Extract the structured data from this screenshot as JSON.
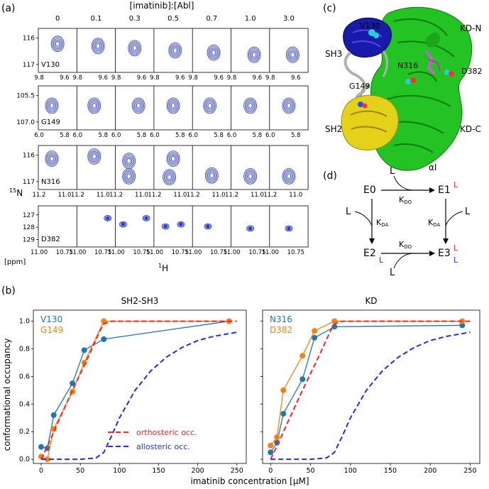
{
  "panel_labels": {
    "a": "(a)",
    "b": "(b)",
    "c": "(c)",
    "d": "(d)"
  },
  "panel_a": {
    "header": "[imatinib]:[Abl]",
    "ratios": [
      "0",
      "0.1",
      "0.3",
      "0.5",
      "0.7",
      "1.0",
      "3.0"
    ],
    "ylabel_sup": "15",
    "ylabel": "N",
    "xlabel_sup": "1",
    "xlabel": "H",
    "ppm_label": "[ppm]",
    "rows": [
      {
        "residue": "V130",
        "yticks": [
          "116",
          "117"
        ],
        "xticks": [
          "9.8",
          "9.6"
        ]
      },
      {
        "residue": "G149",
        "yticks": [
          "105.5",
          "107.0"
        ],
        "xticks": [
          "6.0",
          "5.8"
        ]
      },
      {
        "residue": "N316",
        "yticks": [
          "116",
          "117"
        ],
        "xticks": [
          "11.2",
          "11.0"
        ]
      },
      {
        "residue": "D382",
        "yticks": [
          "127",
          "128",
          "129"
        ],
        "xticks": [
          "11.00",
          "10.75"
        ]
      }
    ]
  },
  "panel_c": {
    "labels": {
      "v130": "V130",
      "sh3": "SH3",
      "g149": "G149",
      "sh2": "SH2",
      "n316": "N316",
      "d382": "D382",
      "kdn": "KD-N",
      "kdc": "KD-C",
      "alpha": "αI"
    }
  },
  "panel_d": {
    "states": {
      "e0": "E0",
      "e1": "E1",
      "e2": "E2",
      "e3": "E3"
    },
    "ligand": "L",
    "kdo": {
      "main": "K",
      "sub": "DO"
    },
    "kda": {
      "main": "K",
      "sub": "DA"
    },
    "marks": {
      "red": "L",
      "blue": "L"
    }
  },
  "colors": {
    "blue_contour": "#2233cc",
    "series_blue": "#1f77b4",
    "series_orange": "#ff7f0e",
    "ortho": "#ff2020",
    "allo": "#1f2fe0",
    "green": "#22c322",
    "yellow": "#e4d21a",
    "navy": "#1a1aa8"
  },
  "panel_b": {
    "ylabel": "conformational occupancy",
    "xlabel": "imatinib concentration [μM]",
    "legend": {
      "ortho": "orthosteric occ.",
      "allo": "allosteric occ."
    },
    "left_series_labels": [
      "V130",
      "G149"
    ],
    "right_series_labels": [
      "N316",
      "D382"
    ]
  },
  "chart_data": [
    {
      "type": "line",
      "title": "SH2-SH3",
      "xlabel": "imatinib concentration [μM]",
      "ylabel": "conformational occupancy",
      "xlim": [
        -10,
        262
      ],
      "ylim": [
        -0.03,
        1.08
      ],
      "xticks": [
        "0",
        "50",
        "100",
        "150",
        "200",
        "250"
      ],
      "yticks": [
        "0.0",
        "0.2",
        "0.4",
        "0.6",
        "0.8",
        "1.0"
      ],
      "series": [
        {
          "name": "V130",
          "x": [
            0,
            8,
            16,
            40,
            55,
            80,
            240
          ],
          "y": [
            0.09,
            0.08,
            0.32,
            0.55,
            0.79,
            0.87,
            1.0
          ]
        },
        {
          "name": "G149",
          "x": [
            0,
            8,
            16,
            40,
            55,
            80,
            240
          ],
          "y": [
            0.02,
            0.0,
            0.22,
            0.49,
            0.7,
            1.0,
            1.0
          ]
        },
        {
          "name": "orthosteric occ.",
          "x": [
            0,
            10,
            20,
            40,
            60,
            75,
            80,
            90,
            120,
            250
          ],
          "y": [
            0.0,
            0.12,
            0.25,
            0.5,
            0.74,
            0.93,
            0.98,
            1.0,
            1.0,
            1.0
          ]
        },
        {
          "name": "allosteric occ.",
          "x": [
            0,
            50,
            70,
            80,
            90,
            100,
            120,
            140,
            160,
            180,
            200,
            220,
            250
          ],
          "y": [
            0.0,
            0.0,
            0.01,
            0.05,
            0.17,
            0.3,
            0.5,
            0.64,
            0.74,
            0.81,
            0.86,
            0.89,
            0.92
          ]
        }
      ]
    },
    {
      "type": "line",
      "title": "KD",
      "xlabel": "imatinib concentration [μM]",
      "xlim": [
        -10,
        262
      ],
      "ylim": [
        -0.03,
        1.08
      ],
      "xticks": [
        "0",
        "50",
        "100",
        "150",
        "200",
        "250"
      ],
      "yticks": [
        "0.0",
        "0.2",
        "0.4",
        "0.6",
        "0.8",
        "1.0"
      ],
      "series": [
        {
          "name": "N316",
          "x": [
            0,
            8,
            16,
            40,
            55,
            80,
            240
          ],
          "y": [
            0.05,
            0.12,
            0.33,
            0.58,
            0.88,
            0.96,
            0.97
          ]
        },
        {
          "name": "D382",
          "x": [
            0,
            8,
            16,
            40,
            55,
            80,
            240
          ],
          "y": [
            0.1,
            0.16,
            0.5,
            0.75,
            0.93,
            1.0,
            1.0
          ]
        },
        {
          "name": "orthosteric occ.",
          "x": [
            0,
            10,
            20,
            40,
            60,
            75,
            80,
            90,
            120,
            250
          ],
          "y": [
            0.0,
            0.12,
            0.25,
            0.5,
            0.74,
            0.93,
            0.98,
            1.0,
            1.0,
            1.0
          ]
        },
        {
          "name": "allosteric occ.",
          "x": [
            0,
            50,
            70,
            80,
            90,
            100,
            120,
            140,
            160,
            180,
            200,
            220,
            250
          ],
          "y": [
            0.0,
            0.0,
            0.01,
            0.05,
            0.17,
            0.3,
            0.5,
            0.64,
            0.74,
            0.81,
            0.86,
            0.89,
            0.92
          ]
        }
      ]
    }
  ]
}
